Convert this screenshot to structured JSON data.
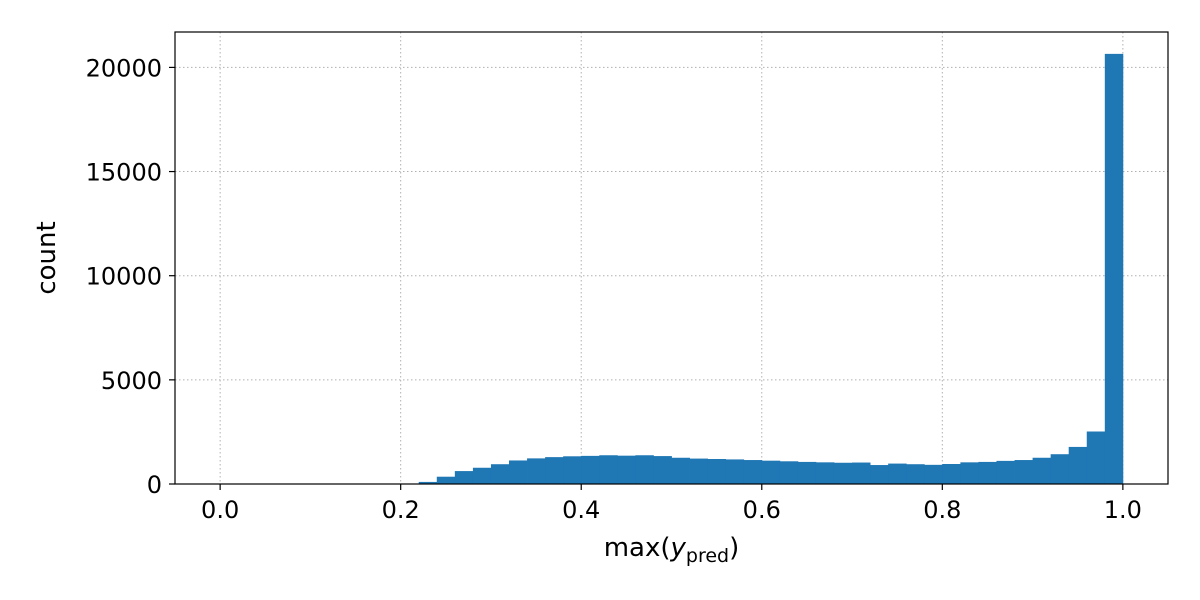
{
  "chart_data": {
    "type": "bar",
    "subtype": "histogram",
    "xlabel": "max(y_pred)",
    "xlabel_base": "max(",
    "xlabel_var": "y",
    "xlabel_sub": "pred",
    "xlabel_close": ")",
    "ylabel": "count",
    "xlim": [
      -0.05,
      1.05
    ],
    "ylim": [
      0,
      21700
    ],
    "xticks": [
      0.0,
      0.2,
      0.4,
      0.6,
      0.8,
      1.0
    ],
    "xtick_labels": [
      "0.0",
      "0.2",
      "0.4",
      "0.6",
      "0.8",
      "1.0"
    ],
    "yticks": [
      0,
      5000,
      10000,
      15000,
      20000
    ],
    "ytick_labels": [
      "0",
      "5000",
      "10000",
      "15000",
      "20000"
    ],
    "grid": true,
    "grid_style": "dotted",
    "bar_color": "#1f77b4",
    "bin_edges": [
      0.0,
      0.02,
      0.04,
      0.06,
      0.08,
      0.1,
      0.12,
      0.14,
      0.16,
      0.18,
      0.2,
      0.22,
      0.24,
      0.26,
      0.28,
      0.3,
      0.32,
      0.34,
      0.36,
      0.38,
      0.4,
      0.42,
      0.44,
      0.46,
      0.48,
      0.5,
      0.52,
      0.54,
      0.56,
      0.58,
      0.6,
      0.62,
      0.64,
      0.66,
      0.68,
      0.7,
      0.72,
      0.74,
      0.76,
      0.78,
      0.8,
      0.82,
      0.84,
      0.86,
      0.88,
      0.9,
      0.92,
      0.94,
      0.96,
      0.98,
      1.0
    ],
    "values": [
      0,
      0,
      0,
      0,
      0,
      0,
      0,
      0,
      0,
      0,
      0,
      100,
      350,
      620,
      780,
      950,
      1130,
      1230,
      1290,
      1330,
      1350,
      1380,
      1360,
      1380,
      1340,
      1260,
      1220,
      1200,
      1180,
      1150,
      1120,
      1090,
      1060,
      1040,
      1020,
      1030,
      910,
      980,
      950,
      920,
      960,
      1040,
      1060,
      1110,
      1150,
      1260,
      1430,
      1780,
      2520,
      20650
    ]
  }
}
